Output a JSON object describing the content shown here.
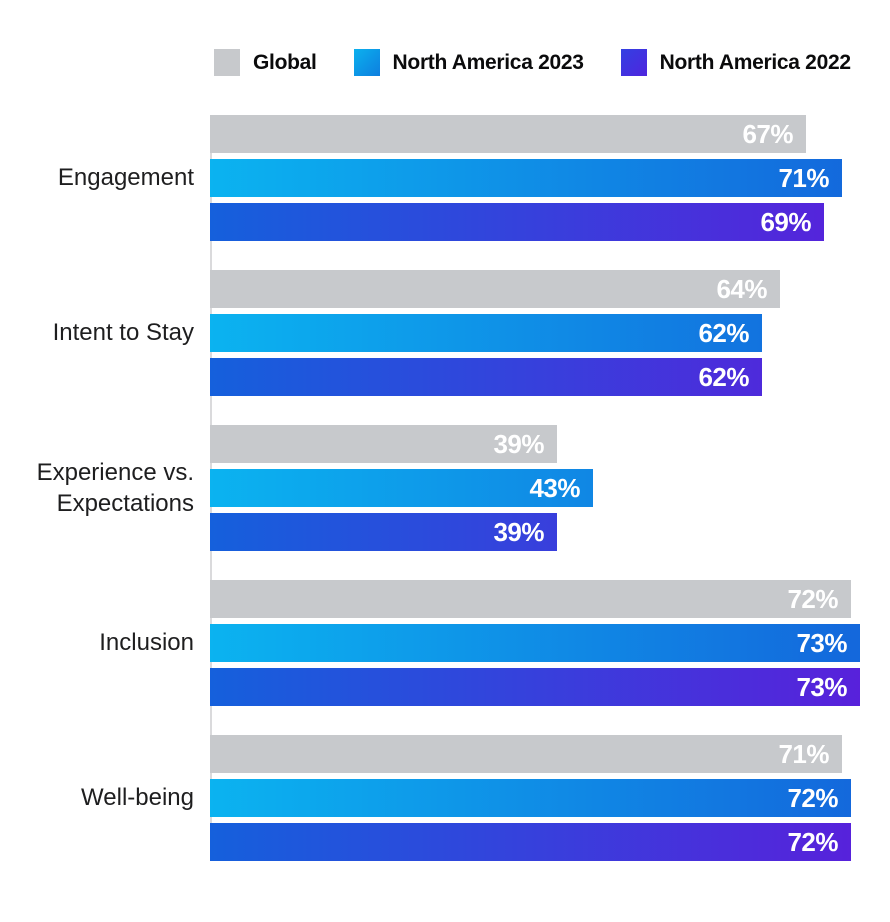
{
  "legend": {
    "items": [
      {
        "label": "Global",
        "color_start": "#c7c9cc",
        "color_end": "#c7c9cc"
      },
      {
        "label": "North America 2023",
        "color_start": "#0bb1ee",
        "color_end": "#0e7edf"
      },
      {
        "label": "North America 2022",
        "color_start": "#3340e2",
        "color_end": "#4f25de"
      }
    ]
  },
  "chart_data": {
    "type": "bar",
    "orientation": "horizontal",
    "title": "",
    "categories": [
      "Engagement",
      "Intent to Stay",
      "Experience vs. Expectations",
      "Inclusion",
      "Well-being"
    ],
    "series": [
      {
        "name": "Global",
        "values": [
          67,
          64,
          39,
          72,
          71
        ],
        "color_start": "#c7c9cc",
        "color_end": "#c7c9cc"
      },
      {
        "name": "North America 2023",
        "values": [
          71,
          62,
          43,
          73,
          72
        ],
        "color_start": "#0bb3f0",
        "color_end": "#1464db"
      },
      {
        "name": "North America 2022",
        "values": [
          69,
          62,
          39,
          73,
          72
        ],
        "color_start": "#1560dc",
        "color_end": "#5b1edb"
      }
    ],
    "value_suffix": "%",
    "value_labels": "inside-end",
    "xlim": [
      0,
      76.4
    ],
    "grid": false,
    "axis_line_color": "#dadadc",
    "value_label_color": "#ffffff",
    "legend_position": "top"
  }
}
